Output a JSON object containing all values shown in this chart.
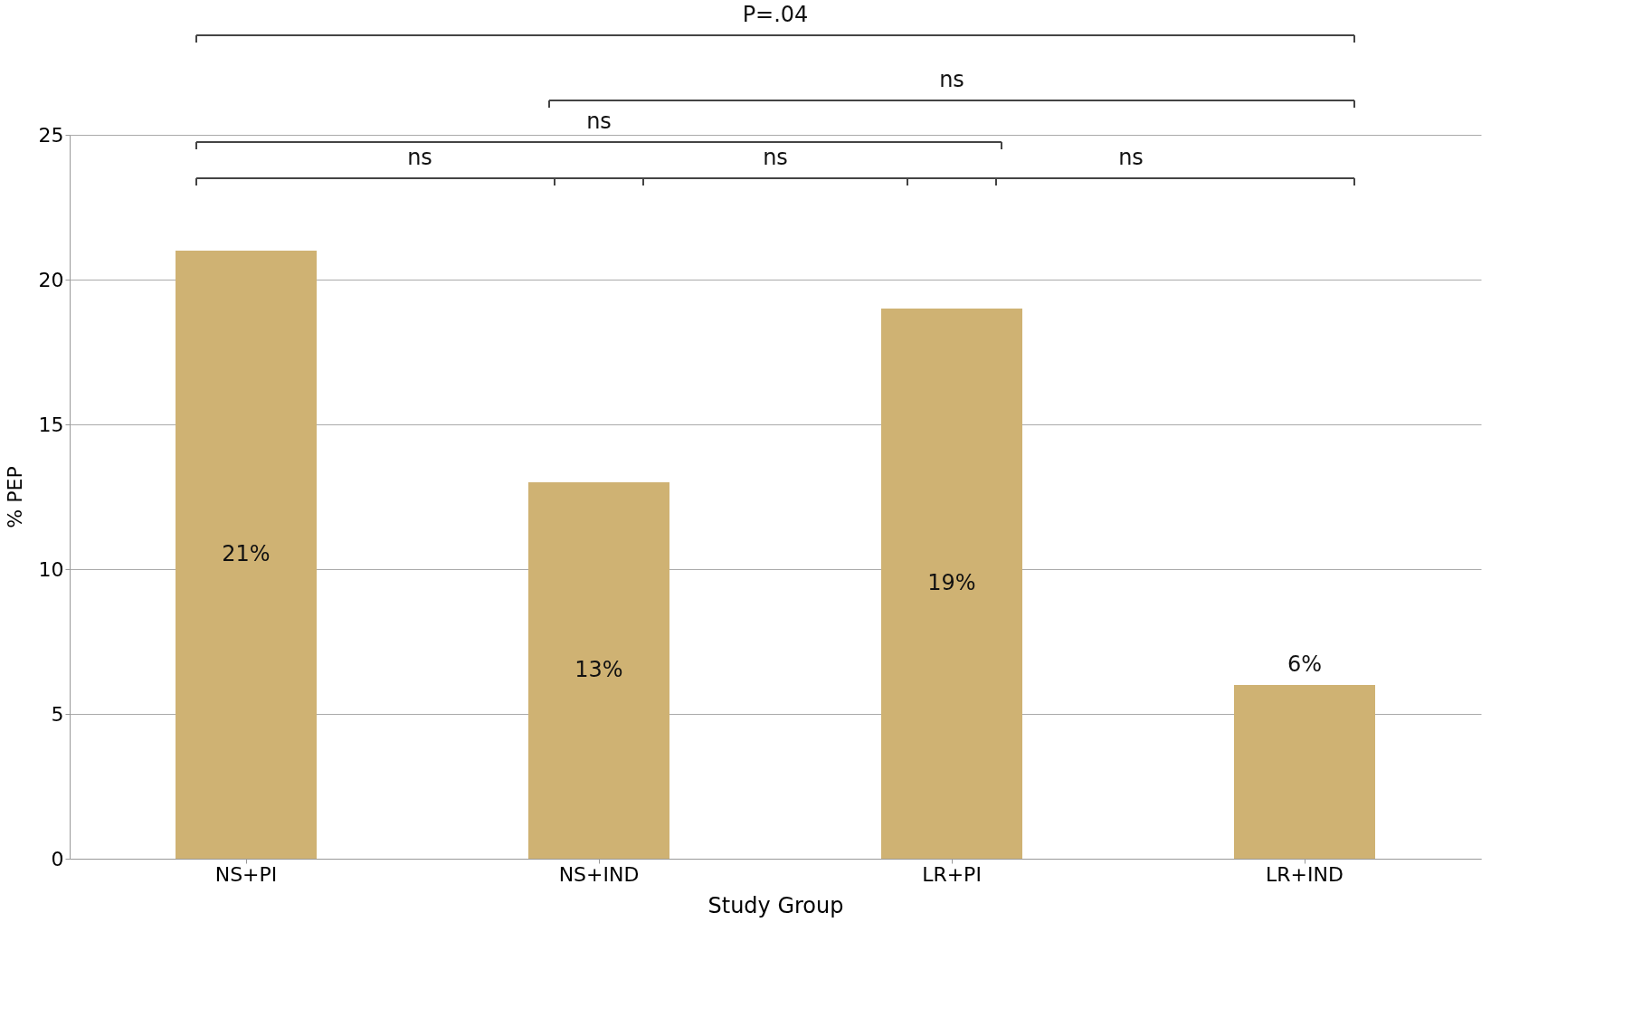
{
  "chart_data": {
    "type": "bar",
    "xlabel": "Study Group",
    "ylabel": "% PEP",
    "categories": [
      "NS+PI",
      "NS+IND",
      "LR+PI",
      "LR+IND"
    ],
    "values": [
      21,
      13,
      19,
      6
    ],
    "value_labels": [
      "21%",
      "13%",
      "19%",
      "6%"
    ],
    "color": "#cfb273",
    "ylim": [
      0,
      25
    ],
    "yticks": [
      0,
      5,
      10,
      15,
      20,
      25
    ],
    "grid": "y",
    "annotations": [
      "P=.04",
      "ns",
      "ns",
      "ns",
      "ns",
      "ns"
    ]
  }
}
